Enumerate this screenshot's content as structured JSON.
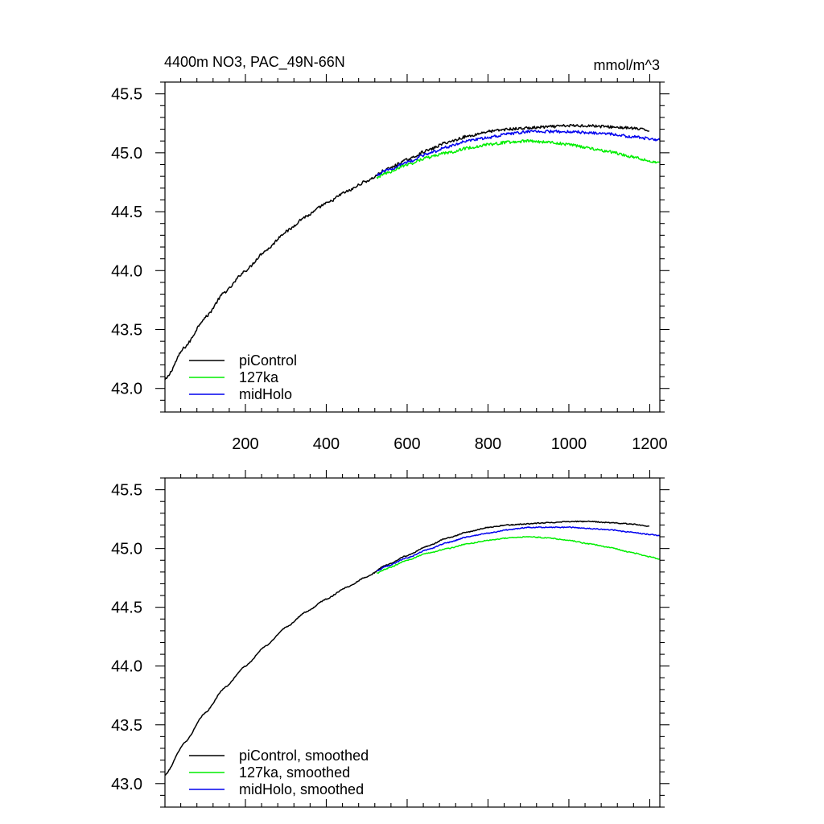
{
  "chart_data": [
    {
      "type": "line",
      "title_left": "4400m NO3, PAC_49N-66N",
      "title_right": "mmol/m^3",
      "xlabel": "",
      "ylabel": "",
      "xlim": [
        1,
        1225
      ],
      "ylim": [
        42.8,
        45.6
      ],
      "x_ticks": [
        200,
        400,
        600,
        800,
        1000,
        1200
      ],
      "x_tick_labels": [
        "200",
        "400",
        "600",
        "800",
        "1000",
        "1200"
      ],
      "y_ticks": [
        43.0,
        43.5,
        44.0,
        44.5,
        45.0,
        45.5
      ],
      "y_tick_labels": [
        "43.0",
        "43.5",
        "44.0",
        "44.5",
        "45.0",
        "45.5"
      ],
      "legend_position": "bottom-left",
      "noise": 0.012,
      "series": [
        {
          "name": "piControl",
          "color": "#000000",
          "x": [
            1,
            50,
            100,
            150,
            200,
            250,
            300,
            350,
            400,
            450,
            500,
            550,
            600,
            650,
            700,
            750,
            800,
            850,
            900,
            950,
            1000,
            1050,
            1100,
            1150,
            1200
          ],
          "y": [
            43.07,
            43.35,
            43.6,
            43.82,
            44.0,
            44.17,
            44.33,
            44.46,
            44.57,
            44.67,
            44.76,
            44.86,
            44.94,
            45.02,
            45.09,
            45.14,
            45.18,
            45.2,
            45.21,
            45.22,
            45.23,
            45.23,
            45.22,
            45.21,
            45.19
          ]
        },
        {
          "name": "127ka",
          "color": "#00ee00",
          "x": [
            525,
            550,
            600,
            650,
            700,
            750,
            800,
            850,
            900,
            950,
            1000,
            1050,
            1100,
            1150,
            1200,
            1225
          ],
          "y": [
            44.79,
            44.83,
            44.9,
            44.96,
            45.0,
            45.04,
            45.07,
            45.09,
            45.1,
            45.09,
            45.07,
            45.04,
            45.01,
            44.97,
            44.93,
            44.91
          ]
        },
        {
          "name": "midHolo",
          "color": "#0000ee",
          "x": [
            525,
            550,
            600,
            650,
            700,
            750,
            800,
            850,
            900,
            950,
            1000,
            1050,
            1100,
            1150,
            1200,
            1225
          ],
          "y": [
            44.81,
            44.85,
            44.92,
            44.99,
            45.05,
            45.1,
            45.13,
            45.16,
            45.18,
            45.18,
            45.18,
            45.17,
            45.16,
            45.14,
            45.12,
            45.11
          ]
        }
      ]
    },
    {
      "type": "line",
      "xlabel": "",
      "ylabel": "",
      "xlim": [
        1,
        1225
      ],
      "ylim": [
        42.8,
        45.6
      ],
      "x_ticks": [
        200,
        400,
        600,
        800,
        1000,
        1200
      ],
      "y_ticks": [
        43.0,
        43.5,
        44.0,
        44.5,
        45.0,
        45.5
      ],
      "y_tick_labels": [
        "43.0",
        "43.5",
        "44.0",
        "44.5",
        "45.0",
        "45.5"
      ],
      "legend_position": "bottom-left",
      "noise": 0.004,
      "series": [
        {
          "name": "piControl, smoothed",
          "color": "#000000",
          "x": [
            1,
            50,
            100,
            150,
            200,
            250,
            300,
            350,
            400,
            450,
            500,
            550,
            600,
            650,
            700,
            750,
            800,
            850,
            900,
            950,
            1000,
            1050,
            1100,
            1150,
            1200
          ],
          "y": [
            43.07,
            43.35,
            43.6,
            43.82,
            44.0,
            44.17,
            44.33,
            44.46,
            44.57,
            44.67,
            44.76,
            44.86,
            44.94,
            45.02,
            45.09,
            45.14,
            45.18,
            45.2,
            45.21,
            45.22,
            45.23,
            45.23,
            45.22,
            45.21,
            45.19
          ]
        },
        {
          "name": "127ka, smoothed",
          "color": "#00ee00",
          "x": [
            525,
            550,
            600,
            650,
            700,
            750,
            800,
            850,
            900,
            950,
            1000,
            1050,
            1100,
            1150,
            1200,
            1225
          ],
          "y": [
            44.79,
            44.83,
            44.9,
            44.96,
            45.0,
            45.04,
            45.07,
            45.09,
            45.1,
            45.09,
            45.07,
            45.04,
            45.01,
            44.97,
            44.93,
            44.91
          ]
        },
        {
          "name": "midHolo, smoothed",
          "color": "#0000ee",
          "x": [
            525,
            550,
            600,
            650,
            700,
            750,
            800,
            850,
            900,
            950,
            1000,
            1050,
            1100,
            1150,
            1200,
            1225
          ],
          "y": [
            44.81,
            44.85,
            44.92,
            44.99,
            45.05,
            45.1,
            45.13,
            45.16,
            45.18,
            45.18,
            45.18,
            45.17,
            45.16,
            45.14,
            45.12,
            45.11
          ]
        }
      ]
    }
  ]
}
